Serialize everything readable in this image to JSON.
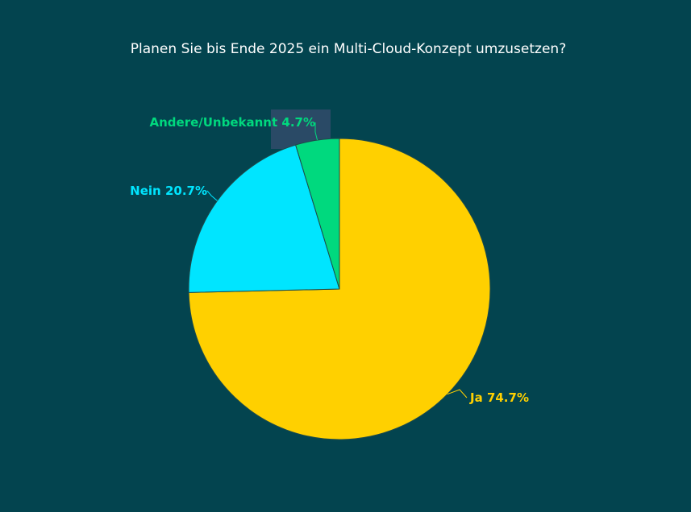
{
  "chart_data": {
    "type": "pie",
    "title": "Planen Sie bis Ende 2025 ein Multi-Cloud-Konzept umzusetzen?",
    "categories": [
      "Ja",
      "Nein",
      "Andere/Unbekannt"
    ],
    "values": [
      74.7,
      20.7,
      4.7
    ],
    "value_labels": [
      "74.7%",
      "20.7%",
      "4.7%"
    ],
    "colors": [
      "#ffd000",
      "#00e5ff",
      "#00d97e"
    ]
  }
}
